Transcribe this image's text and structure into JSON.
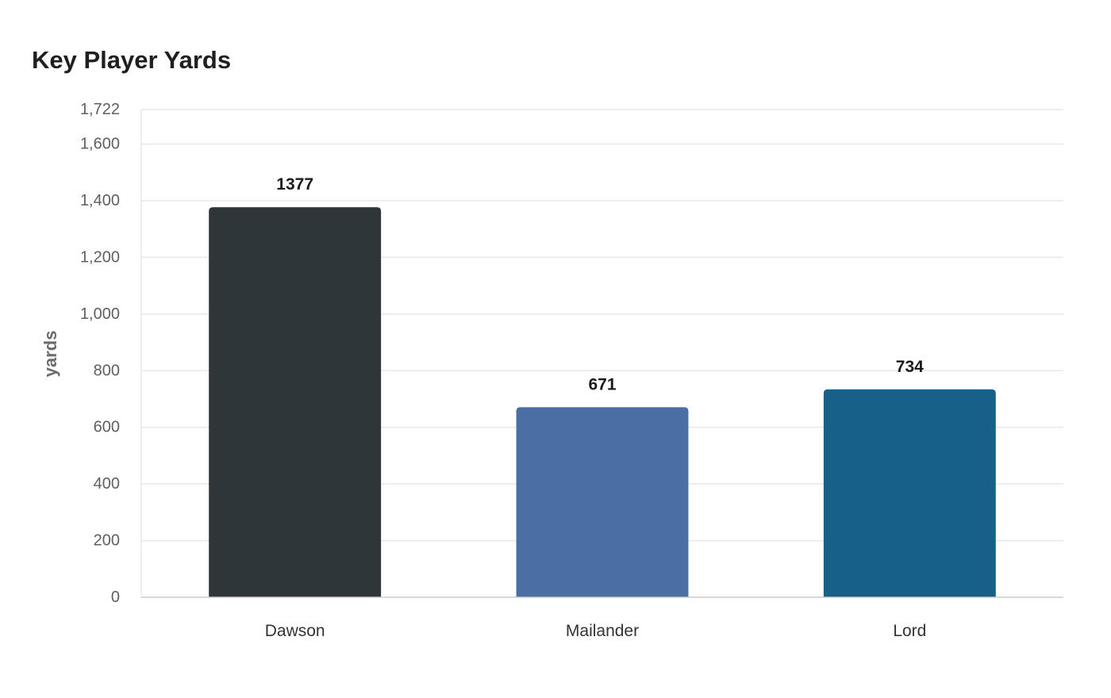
{
  "chart_data": {
    "type": "bar",
    "title": "Key Player Yards",
    "xlabel": "",
    "ylabel": "yards",
    "categories": [
      "Dawson",
      "Mailander",
      "Lord"
    ],
    "values": [
      1377,
      671,
      734
    ],
    "data_labels": [
      "1377",
      "671",
      "734"
    ],
    "colors": [
      "#2d3538",
      "#4a6fa5",
      "#176089"
    ],
    "ylim": [
      0,
      1722
    ],
    "y_ticks": [
      0,
      200,
      400,
      600,
      800,
      1000,
      1200,
      1400,
      1600,
      1722
    ],
    "y_tick_labels": [
      "0",
      "200",
      "400",
      "600",
      "800",
      "1,000",
      "1,200",
      "1,400",
      "1,600",
      "1,722"
    ],
    "grid": true,
    "legend": "none"
  }
}
